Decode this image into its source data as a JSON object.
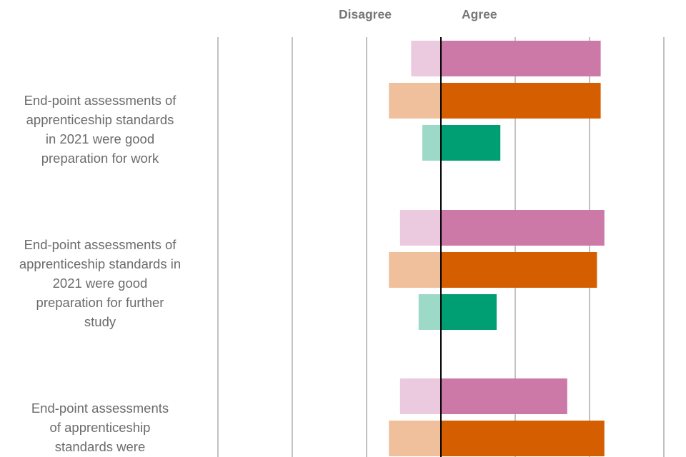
{
  "chart_data": {
    "type": "bar",
    "orientation": "horizontal-diverging",
    "header_left": "Disagree",
    "header_right": "Agree",
    "categories": [
      "End-point assessments of apprenticeship standards in 2021 were good preparation for work",
      "End-point assessments of apprenticeship standards in 2021 were good preparation for further study",
      "End-point assessments of apprenticeship standards were"
    ],
    "category_lines": [
      [
        "End-point assessments of",
        "apprenticeship standards",
        "in 2021 were good",
        "preparation for work"
      ],
      [
        "End-point assessments of",
        "apprenticeship standards in",
        "2021 were good",
        "preparation for further",
        "study"
      ],
      [
        "End-point assessments",
        "of apprenticeship",
        "standards were"
      ]
    ],
    "series": [
      {
        "disagree": [
          -8,
          -11,
          -11
        ],
        "agree": [
          43,
          44,
          34
        ]
      },
      {
        "disagree": [
          -14,
          -14,
          -14
        ],
        "agree": [
          43,
          42,
          44
        ]
      },
      {
        "disagree": [
          -5,
          -6,
          null
        ],
        "agree": [
          16,
          15,
          null
        ]
      }
    ],
    "colors": {
      "agree": [
        "#cc79a7",
        "#d55e00",
        "#009e73"
      ],
      "disagree": [
        "#ebc9df",
        "#efc09b",
        "#9dd9c7"
      ],
      "gridline": "#a0a0a0",
      "zero_line": "#000000"
    },
    "xlim": [
      -60,
      60
    ],
    "gridlines": [
      -60,
      -40,
      -20,
      0,
      20,
      40,
      60
    ]
  }
}
